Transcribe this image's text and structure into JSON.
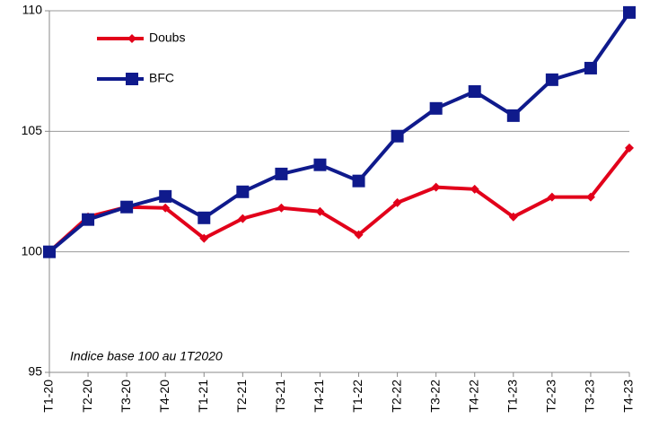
{
  "chart_data": {
    "type": "line",
    "categories": [
      "T1-20",
      "T2-20",
      "T3-20",
      "T4-20",
      "T1-21",
      "T2-21",
      "T3-21",
      "T4-21",
      "T1-22",
      "T2-22",
      "T3-22",
      "T4-22",
      "T1-23",
      "T2-23",
      "T3-23",
      "T4-23"
    ],
    "series": [
      {
        "name": "Doubs",
        "color": "#e2001a",
        "marker": "diamond",
        "values": [
          100,
          101.45,
          101.86,
          101.82,
          100.56,
          101.38,
          101.82,
          101.67,
          100.71,
          102.04,
          102.68,
          102.6,
          101.45,
          102.27,
          102.27,
          104.31
        ]
      },
      {
        "name": "BFC",
        "color": "#0f1a8c",
        "marker": "square",
        "values": [
          100,
          101.34,
          101.86,
          102.3,
          101.41,
          102.49,
          103.23,
          103.61,
          102.94,
          104.8,
          105.95,
          106.65,
          105.65,
          107.14,
          107.62,
          109.93
        ]
      }
    ],
    "ylim": [
      95,
      110
    ],
    "yticks": [
      95,
      100,
      105,
      110
    ],
    "grid": true,
    "annotation": "Indice base 100 au 1T2020"
  }
}
